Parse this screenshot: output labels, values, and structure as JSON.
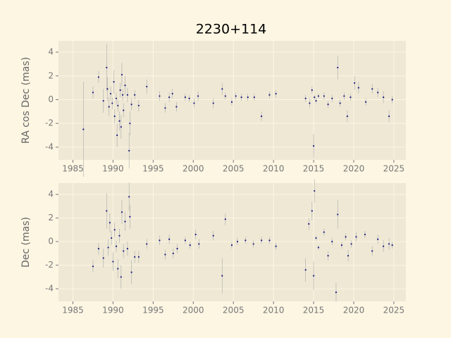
{
  "chart_data": [
    {
      "type": "scatter",
      "title": "2230+114",
      "ylabel": "RA cos Dec (mas)",
      "color": "#1a1a80",
      "error_color": "#aaaaaa",
      "grid": true,
      "xlim": [
        1983.2,
        2026.5
      ],
      "ylim": [
        -5.07,
        4.95
      ],
      "xticks": [
        1985,
        1990,
        1995,
        2000,
        2005,
        2010,
        2015,
        2020,
        2025
      ],
      "yticks": [
        -4,
        -2,
        0,
        2,
        4
      ],
      "x": [
        1986.3,
        1987.5,
        1988.2,
        1988.8,
        1989.2,
        1989.3,
        1989.5,
        1989.7,
        1989.9,
        1990.1,
        1990.2,
        1990.4,
        1990.5,
        1990.6,
        1990.8,
        1990.9,
        1991.0,
        1991.1,
        1991.2,
        1991.3,
        1991.5,
        1991.8,
        1992.0,
        1992.1,
        1992.3,
        1992.7,
        1993.2,
        1994.2,
        1995.8,
        1996.5,
        1997.0,
        1997.4,
        1997.9,
        1999.0,
        1999.5,
        2000.1,
        2000.6,
        2002.5,
        2003.6,
        2004.0,
        2004.8,
        2005.3,
        2006.0,
        2006.8,
        2007.6,
        2008.5,
        2009.5,
        2010.3,
        2014.0,
        2014.5,
        2014.8,
        2015.0,
        2015.1,
        2015.3,
        2015.6,
        2016.3,
        2016.8,
        2017.3,
        2018.0,
        2018.3,
        2018.8,
        2019.2,
        2019.6,
        2020.1,
        2020.6,
        2021.5,
        2022.3,
        2023.0,
        2023.7,
        2024.4,
        2024.8
      ],
      "values": [
        -2.5,
        0.6,
        1.9,
        -0.1,
        2.7,
        0.9,
        -0.6,
        0.5,
        -0.3,
        1.5,
        -1.4,
        0.1,
        -3.0,
        -0.5,
        -1.8,
        0.8,
        -2.3,
        2.1,
        0.4,
        -0.9,
        1.2,
        0.4,
        -4.3,
        -2.0,
        -0.4,
        0.4,
        -0.5,
        1.1,
        0.3,
        -0.7,
        0.2,
        0.5,
        -0.6,
        0.2,
        0.1,
        -0.3,
        0.3,
        -0.3,
        0.9,
        0.3,
        -0.2,
        0.3,
        0.2,
        0.2,
        0.2,
        -1.4,
        0.4,
        0.5,
        0.1,
        -0.3,
        0.8,
        -3.9,
        0.2,
        -0.1,
        0.3,
        0.3,
        -0.4,
        0.1,
        2.7,
        -0.3,
        0.3,
        -1.4,
        0.2,
        1.4,
        1.0,
        -0.2,
        0.9,
        0.6,
        0.2,
        -1.4,
        0.0
      ],
      "errors": [
        4,
        0.5,
        0.5,
        1.0,
        2,
        1,
        0.8,
        0.6,
        0.5,
        1,
        0.6,
        0.5,
        1,
        0.5,
        0.8,
        0.6,
        1,
        1,
        0.5,
        0.6,
        0.8,
        0.6,
        1.5,
        1,
        0.5,
        0.4,
        0.5,
        0.6,
        0.4,
        0.4,
        0.4,
        0.4,
        0.4,
        0.3,
        0.3,
        0.4,
        0.4,
        0.4,
        0.5,
        0.3,
        0.3,
        0.3,
        0.3,
        0.3,
        0.3,
        0.4,
        0.3,
        0.3,
        0.3,
        0.4,
        0.3,
        1,
        0.2,
        0.2,
        0.2,
        0.3,
        0.3,
        0.3,
        1,
        0.3,
        0.3,
        0.5,
        0.3,
        0.6,
        0.5,
        0.3,
        0.4,
        0.4,
        0.5,
        0.5,
        0.3
      ]
    },
    {
      "type": "scatter",
      "ylabel": "Dec (mas)",
      "color": "#1a1a80",
      "error_color": "#aaaaaa",
      "grid": true,
      "xlim": [
        1983.2,
        2026.5
      ],
      "ylim": [
        -5.07,
        4.96
      ],
      "xticks": [
        1985,
        1990,
        1995,
        2000,
        2005,
        2010,
        2015,
        2020,
        2025
      ],
      "yticks": [
        -4,
        -2,
        0,
        2,
        4
      ],
      "x": [
        1987.5,
        1988.2,
        1988.8,
        1989.2,
        1989.4,
        1989.6,
        1989.8,
        1990.0,
        1990.2,
        1990.4,
        1990.6,
        1990.8,
        1991.0,
        1991.1,
        1991.3,
        1991.5,
        1991.8,
        1992.0,
        1992.1,
        1992.3,
        1992.7,
        1993.2,
        1994.2,
        1995.8,
        1996.5,
        1997.0,
        1997.5,
        1998.0,
        1999.0,
        1999.6,
        2000.3,
        2000.7,
        2002.5,
        2003.6,
        2004.0,
        2004.8,
        2005.5,
        2006.5,
        2007.5,
        2008.5,
        2009.5,
        2010.3,
        2014.0,
        2014.4,
        2014.8,
        2015.0,
        2015.1,
        2015.3,
        2015.6,
        2016.3,
        2016.8,
        2017.3,
        2017.8,
        2018.0,
        2018.5,
        2019.0,
        2019.3,
        2019.7,
        2020.3,
        2021.4,
        2022.3,
        2023.0,
        2023.7,
        2024.4,
        2024.8
      ],
      "values": [
        -2.1,
        -0.6,
        -1.4,
        2.6,
        -0.5,
        1.6,
        0.3,
        -1.7,
        1.0,
        -0.4,
        -2.3,
        0.5,
        -3.0,
        2.5,
        -0.8,
        1.7,
        -0.6,
        3.8,
        2.1,
        -2.6,
        -1.3,
        -1.3,
        -0.2,
        0.1,
        -1.1,
        0.2,
        -1.0,
        -0.6,
        0.1,
        -0.3,
        0.6,
        -0.2,
        0.5,
        -2.9,
        1.9,
        -0.3,
        0.0,
        0.1,
        -0.2,
        0.1,
        0.1,
        -0.4,
        -2.4,
        1.5,
        2.6,
        -2.9,
        4.3,
        0.3,
        -0.5,
        0.8,
        -1.2,
        0.0,
        -4.3,
        2.3,
        -0.3,
        0.4,
        -1.2,
        -0.2,
        0.4,
        0.6,
        -0.8,
        0.2,
        -0.4,
        -0.2,
        -0.3
      ],
      "errors": [
        0.5,
        0.5,
        0.8,
        1.5,
        0.7,
        0.8,
        0.6,
        0.8,
        0.6,
        0.5,
        0.8,
        0.6,
        1,
        1,
        0.6,
        0.8,
        0.6,
        1.2,
        1,
        1,
        0.5,
        0.5,
        0.4,
        0.4,
        0.4,
        0.4,
        0.4,
        0.4,
        0.3,
        0.3,
        0.4,
        0.4,
        0.4,
        1.5,
        0.5,
        0.3,
        0.3,
        0.3,
        0.3,
        0.3,
        0.3,
        0.3,
        1,
        0.5,
        0.8,
        1.2,
        1,
        0.2,
        0.2,
        0.3,
        0.4,
        0.3,
        0.8,
        1.2,
        0.3,
        0.3,
        0.5,
        0.3,
        0.4,
        0.3,
        0.4,
        0.4,
        0.5,
        0.5,
        0.3
      ]
    }
  ]
}
